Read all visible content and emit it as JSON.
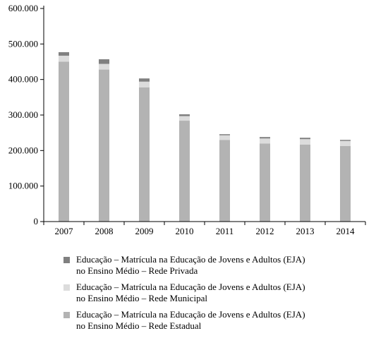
{
  "chart_data": {
    "type": "bar",
    "stacked": true,
    "categories": [
      "2007",
      "2008",
      "2009",
      "2010",
      "2011",
      "2012",
      "2013",
      "2014"
    ],
    "ylim": [
      0,
      600000
    ],
    "y_ticks": [
      "0",
      "100.000",
      "200.000",
      "300.000",
      "400.000",
      "500.000",
      "600.000"
    ],
    "grid": false,
    "legend_position": "bottom",
    "series": [
      {
        "name_lines": [
          "Educação – Matrícula na Educação de Jovens e Adultos (EJA)",
          "no Ensino Médio – Rede Estadual"
        ],
        "color": "#b3b3b3",
        "values": [
          450000,
          428000,
          378000,
          284000,
          230000,
          220000,
          217000,
          213000
        ]
      },
      {
        "name_lines": [
          "Educação – Matrícula na Educação de Jovens e Adultos (EJA)",
          "no Ensino Médio – Rede Municipal"
        ],
        "color": "#dcdcdc",
        "values": [
          17000,
          16000,
          16000,
          13000,
          13000,
          14000,
          15000,
          14000
        ]
      },
      {
        "name_lines": [
          "Educação – Matrícula na Educação de Jovens e Adultos (EJA)",
          "no Ensino Médio – Rede Privada"
        ],
        "color": "#808080",
        "values": [
          10000,
          13000,
          9000,
          5000,
          3000,
          4000,
          4000,
          3000
        ]
      }
    ],
    "legend_order": [
      2,
      1,
      0
    ]
  }
}
